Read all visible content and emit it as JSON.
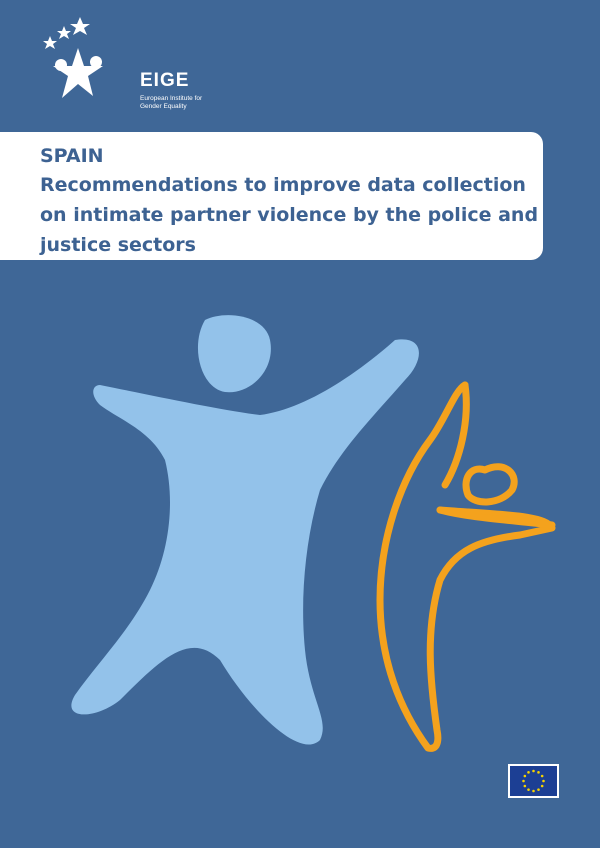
{
  "logo": {
    "name": "EIGE",
    "subtitle": "European Institute for Gender Equality"
  },
  "cover": {
    "country": "SPAIN",
    "title": "Recommendations to improve data collection on intimate partner violence by the police and justice sectors"
  },
  "colors": {
    "background": "#3f6797",
    "title_text": "#3d6292",
    "figure_light_blue": "#93c2ea",
    "figure_orange": "#f4a21d",
    "eu_blue": "#1c3f94",
    "eu_stars": "#f5d200"
  },
  "icons": [
    "eige-logo-icon",
    "eu-flag-icon"
  ]
}
